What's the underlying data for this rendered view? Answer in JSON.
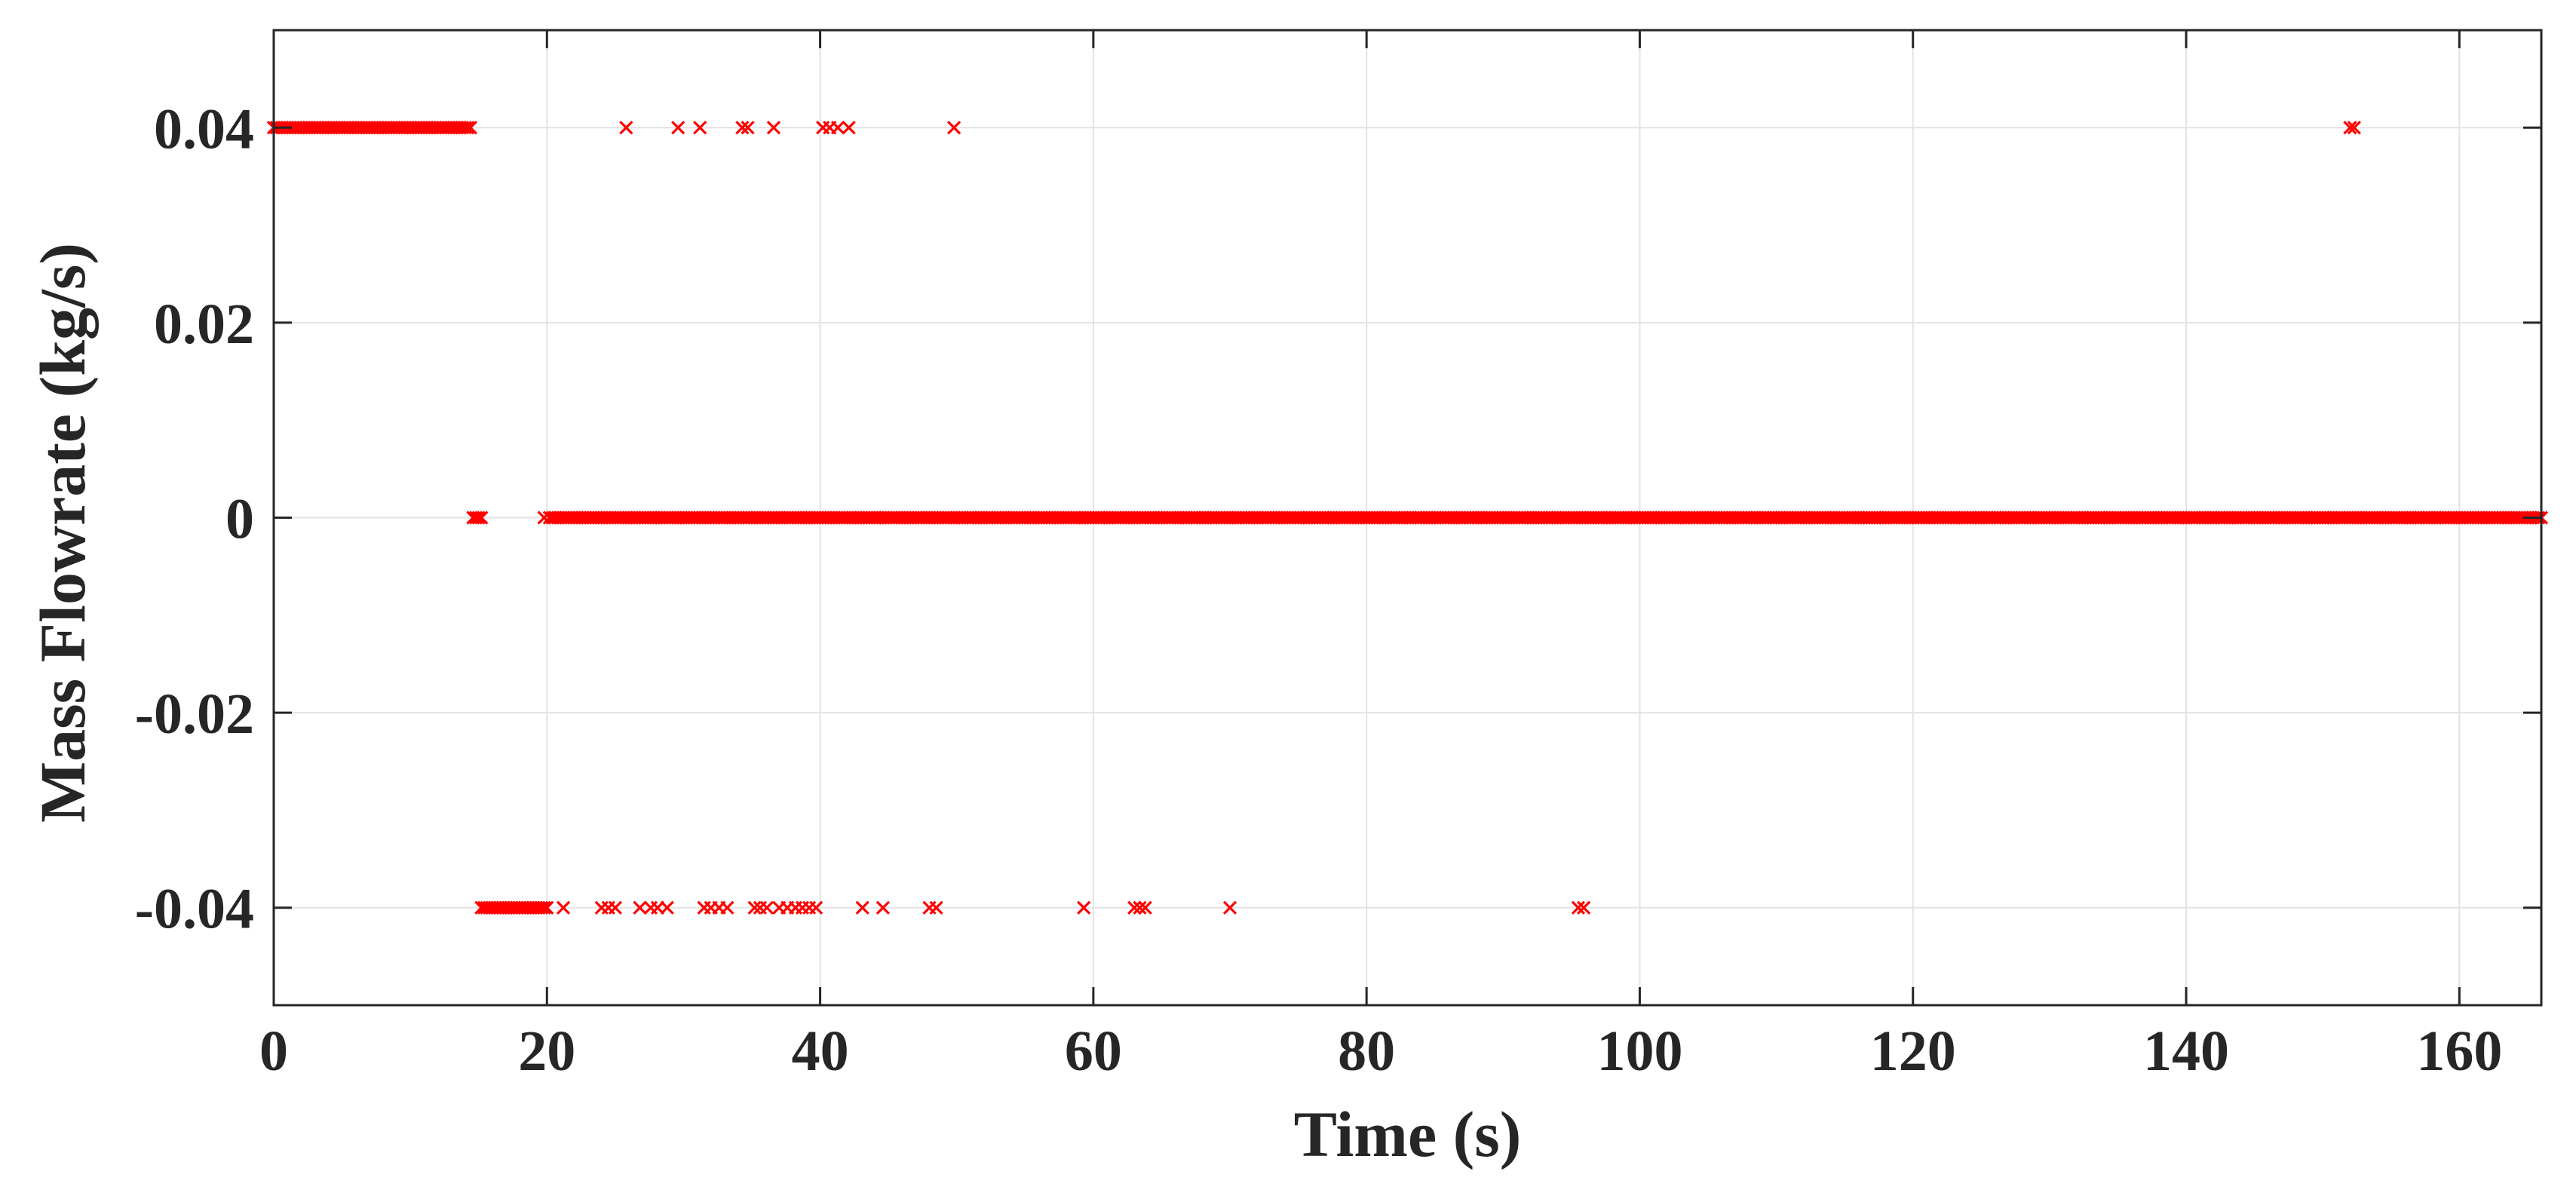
{
  "chart_data": {
    "type": "scatter",
    "xlabel": "Time (s)",
    "ylabel": "Mass Flowrate (kg/s)",
    "xlim": [
      0,
      166
    ],
    "ylim": [
      -0.05,
      0.05
    ],
    "xticks": [
      0,
      20,
      40,
      60,
      80,
      100,
      120,
      140,
      160
    ],
    "xtick_labels": [
      "0",
      "20",
      "40",
      "60",
      "80",
      "100",
      "120",
      "140",
      "160"
    ],
    "yticks": [
      0.04,
      0.02,
      0,
      -0.02,
      -0.04
    ],
    "ytick_labels": [
      "0.04",
      "0.02",
      "0",
      "-0.02",
      "-0.04"
    ],
    "grid": true,
    "marker": "x",
    "marker_color": "#ff0000",
    "series": [
      {
        "values_note": "",
        "points_dense": [
          {
            "from": 0,
            "to": 14.4,
            "step": 0.2,
            "y": 0.04
          },
          {
            "from": 14.6,
            "to": 15.2,
            "step": 0.2,
            "y": 0
          },
          {
            "from": 20.2,
            "to": 166,
            "step": 0.2,
            "y": 0
          },
          {
            "from": 15.2,
            "to": 20.0,
            "step": 0.2,
            "y": -0.04
          }
        ],
        "points": [
          [
            25.8,
            0.04
          ],
          [
            29.6,
            0.04
          ],
          [
            31.2,
            0.04
          ],
          [
            34.3,
            0.04
          ],
          [
            34.7,
            0.04
          ],
          [
            36.6,
            0.04
          ],
          [
            40.2,
            0.04
          ],
          [
            40.7,
            0.04
          ],
          [
            41.3,
            0.04
          ],
          [
            42.1,
            0.04
          ],
          [
            49.8,
            0.04
          ],
          [
            152.0,
            0.04
          ],
          [
            152.3,
            0.04
          ],
          [
            19.8,
            0
          ],
          [
            21.2,
            -0.04
          ],
          [
            24.0,
            -0.04
          ],
          [
            24.5,
            -0.04
          ],
          [
            25.0,
            -0.04
          ],
          [
            26.8,
            -0.04
          ],
          [
            27.6,
            -0.04
          ],
          [
            28.1,
            -0.04
          ],
          [
            28.8,
            -0.04
          ],
          [
            31.5,
            -0.04
          ],
          [
            32.0,
            -0.04
          ],
          [
            32.6,
            -0.04
          ],
          [
            33.2,
            -0.04
          ],
          [
            35.2,
            -0.04
          ],
          [
            35.6,
            -0.04
          ],
          [
            36.1,
            -0.04
          ],
          [
            37.0,
            -0.04
          ],
          [
            37.6,
            -0.04
          ],
          [
            38.2,
            -0.04
          ],
          [
            38.7,
            -0.04
          ],
          [
            39.2,
            -0.04
          ],
          [
            39.7,
            -0.04
          ],
          [
            43.1,
            -0.04
          ],
          [
            44.6,
            -0.04
          ],
          [
            48.0,
            -0.04
          ],
          [
            48.5,
            -0.04
          ],
          [
            59.3,
            -0.04
          ],
          [
            63.0,
            -0.04
          ],
          [
            63.4,
            -0.04
          ],
          [
            63.8,
            -0.04
          ],
          [
            70.0,
            -0.04
          ],
          [
            95.5,
            -0.04
          ],
          [
            95.9,
            -0.04
          ]
        ]
      }
    ]
  }
}
